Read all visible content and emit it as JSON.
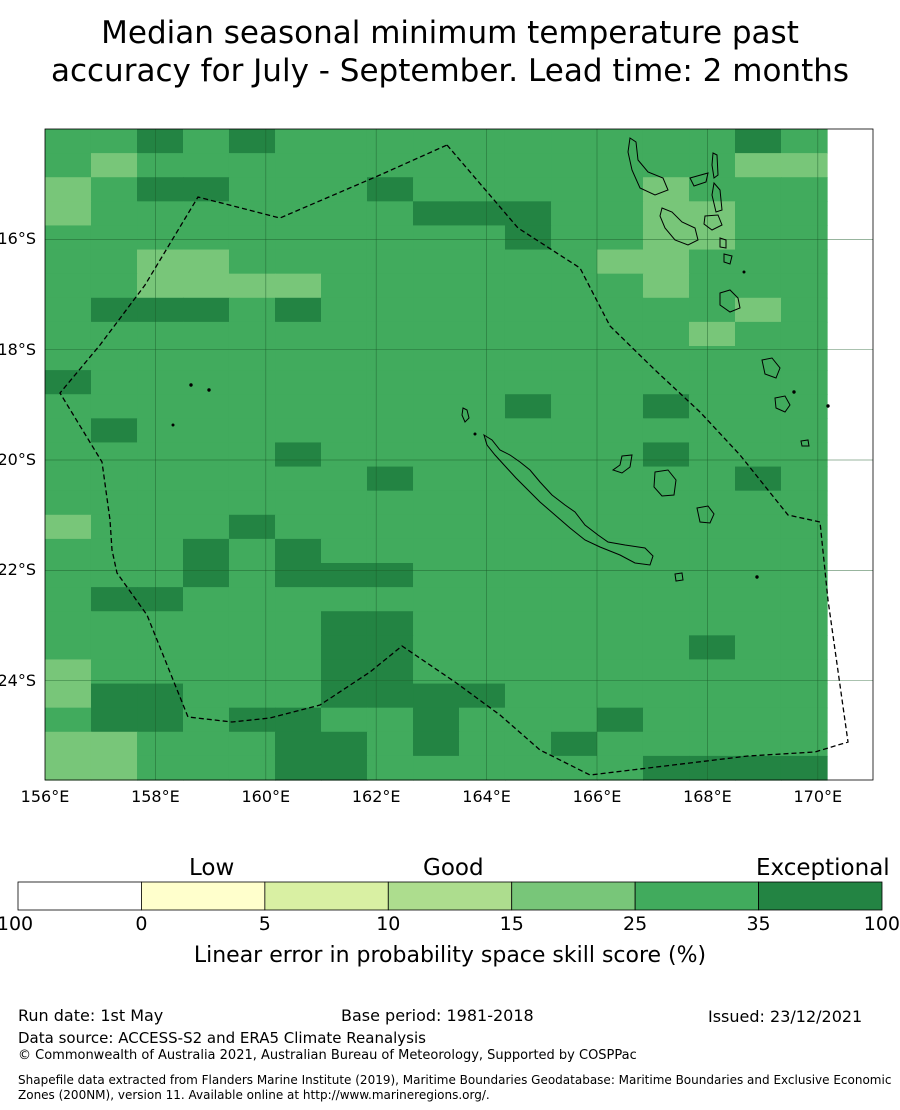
{
  "title_line1": "Median seasonal minimum temperature past",
  "title_line2": "accuracy for July - September. Lead time: 2 months",
  "map": {
    "lat_ticks": [
      "16°S",
      "18°S",
      "20°S",
      "22°S",
      "24°S"
    ],
    "lon_ticks": [
      "156°E",
      "158°E",
      "160°E",
      "162°E",
      "164°E",
      "166°E",
      "168°E",
      "170°E"
    ],
    "lon_range": [
      156,
      171
    ],
    "lat_range": [
      -25.8,
      -14.0
    ],
    "grid_lon": [
      156,
      156.833,
      157.667,
      158.5,
      159.333,
      160.167,
      161,
      161.833,
      162.667,
      163.5,
      164.333,
      165.167,
      166,
      166.833,
      167.667,
      168.5,
      169.333,
      170.167,
      171
    ],
    "grid_rows": [
      "33535333333333353",
      "34333333333333344",
      "43553335333334333",
      "43333333555334433",
      "33333333335334433",
      "33443333333344333",
      "33444433333334333",
      "35553533333333343",
      "33333333333333433",
      "33333333333333333",
      "53333333333333333",
      "33333333335335333",
      "35333333333333333",
      "33333533333335333",
      "33333335333333353",
      "33333333333333333",
      "43335333333333333",
      "33353533333333333",
      "33353555333333333",
      "35533333333333333",
      "33333355333333333",
      "33333355333333533",
      "43333355333333333",
      "45533355553333333",
      "35535533533353333",
      "44333553533533333",
      "44333553333335555"
    ],
    "colors": {
      "3": "#41ab5d",
      "4": "#78c679",
      "5": "#238443"
    }
  },
  "colorbar": {
    "categories": [
      "Low",
      "Good",
      "Exceptional"
    ],
    "ticks": [
      "-100",
      "0",
      "5",
      "10",
      "15",
      "25",
      "35",
      "100"
    ],
    "colors": [
      "#ffffff",
      "#ffffcc",
      "#d9f0a3",
      "#addd8e",
      "#78c679",
      "#41ab5d",
      "#238443"
    ],
    "label": "Linear error in probability space skill score (%)"
  },
  "footer": {
    "run_date": "Run date: 1st May",
    "base_period": "Base period: 1981-2018",
    "issued": "Issued: 23/12/2021",
    "data_source": "Data source: ACCESS-S2 and ERA5 Climate Reanalysis",
    "copyright": "© Commonwealth of Australia 2021, Australian Bureau of Meteorology, Supported by COSPPac",
    "shapefile_line1": "Shapefile data extracted from Flanders Marine Institute (2019), Maritime Boundaries Geodatabase: Maritime Boundaries and Exclusive Economic",
    "shapefile_line2": "Zones (200NM), version 11. Available online at http://www.marineregions.org/."
  }
}
